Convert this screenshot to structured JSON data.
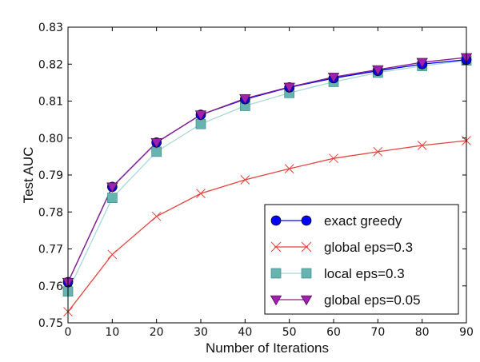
{
  "chart_data": {
    "type": "line",
    "xlabel": "Number of Iterations",
    "ylabel": "Test AUC",
    "xlim": [
      0,
      90
    ],
    "ylim": [
      0.75,
      0.83
    ],
    "xticks": [
      0,
      10,
      20,
      30,
      40,
      50,
      60,
      70,
      80,
      90
    ],
    "yticks": [
      0.75,
      0.76,
      0.77,
      0.78,
      0.79,
      0.8,
      0.81,
      0.82,
      0.83
    ],
    "xtick_labels": [
      "0",
      "10",
      "20",
      "30",
      "40",
      "50",
      "60",
      "70",
      "80",
      "90"
    ],
    "ytick_labels": [
      "0.75",
      "0.76",
      "0.77",
      "0.78",
      "0.79",
      "0.80",
      "0.81",
      "0.82",
      "0.83"
    ],
    "grid": false,
    "legend_position": "bottom-right",
    "x": [
      0,
      10,
      20,
      30,
      40,
      50,
      60,
      70,
      80,
      90
    ],
    "series": [
      {
        "name": "exact greedy",
        "marker": "circle",
        "line_color": "#0000ff",
        "marker_color": "#0000ff",
        "values": [
          0.761,
          0.7868,
          0.7988,
          0.8063,
          0.8105,
          0.8137,
          0.8162,
          0.8182,
          0.82,
          0.8212
        ]
      },
      {
        "name": "global eps=0.3",
        "marker": "x",
        "line_color": "#e8413c",
        "marker_color": "#e8413c",
        "values": [
          0.753,
          0.7685,
          0.7788,
          0.785,
          0.7887,
          0.7917,
          0.7945,
          0.7963,
          0.798,
          0.7993
        ]
      },
      {
        "name": "local eps=0.3",
        "marker": "square",
        "line_color": "#a8d8d8",
        "marker_color": "#66b3b0",
        "values": [
          0.7585,
          0.7838,
          0.7963,
          0.8038,
          0.8087,
          0.8122,
          0.8152,
          0.8177,
          0.8195,
          0.821
        ]
      },
      {
        "name": "global eps=0.05",
        "marker": "triangle-down",
        "line_color": "#8a1e8a",
        "marker_color": "#a020b0",
        "values": [
          0.761,
          0.7868,
          0.7988,
          0.8063,
          0.8107,
          0.8138,
          0.8165,
          0.8185,
          0.8205,
          0.8218
        ]
      }
    ]
  }
}
